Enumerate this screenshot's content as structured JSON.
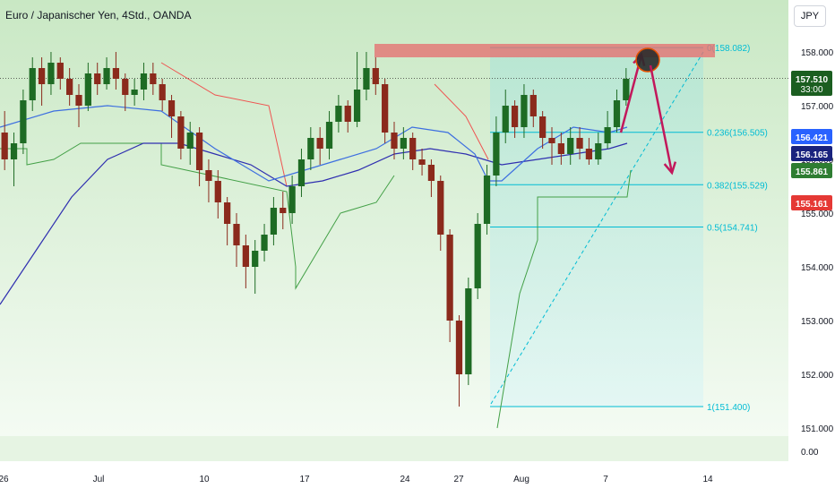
{
  "header": {
    "title": "Euro / Japanischer Yen, 4Std., OANDA",
    "currency_button": "JPY"
  },
  "colors": {
    "background_gradient_top": "#c9e8c4",
    "background_gradient_bottom": "#f4fbf3",
    "up_candle": "#1e6b24",
    "down_candle": "#8b2a1c",
    "ma_fast": "#3d6fe0",
    "ma_slow": "#2f2fb0",
    "supertrend_up": "#43a047",
    "supertrend_down": "#ef5350",
    "fib": "#00bcd4",
    "resistance_zone": "#e57373",
    "arrow": "#c2185b"
  },
  "chart_data": {
    "type": "candlestick",
    "title": "Euro / Japanischer Yen, 4Std., OANDA",
    "ylim": [
      151,
      158.6
    ],
    "grid": false,
    "y_ticks": [
      "158.000",
      "157.000",
      "156.000",
      "155.000",
      "154.000",
      "153.000",
      "152.000",
      "151.000"
    ],
    "y_bottom_tick": "0.00",
    "x_ticks": [
      "26",
      "Jul",
      "10",
      "17",
      "24",
      "27",
      "Aug",
      "7",
      "14"
    ],
    "price_labels": [
      {
        "value": "157.510",
        "sub": "33:00",
        "color": "#1b5e20"
      },
      {
        "value": "156.421",
        "color": "#2962ff"
      },
      {
        "value": "156.165",
        "color": "#1a237e"
      },
      {
        "value": "155.861",
        "color": "#2e7d32"
      },
      {
        "value": "155.161",
        "color": "#e53935"
      }
    ],
    "current_price": 157.51,
    "resistance_zone": [
      157.95,
      158.1
    ],
    "fib_levels": [
      {
        "label": "0(158.082)",
        "value": 158.082
      },
      {
        "label": "0.236(156.505)",
        "value": 156.505
      },
      {
        "label": "0.382(155.529)",
        "value": 155.529
      },
      {
        "label": "0.5(154.741)",
        "value": 154.741
      },
      {
        "label": "1(151.400)",
        "value": 151.4
      }
    ],
    "ma_fast": [
      [
        0,
        156.6
      ],
      [
        60,
        156.9
      ],
      [
        120,
        157.0
      ],
      [
        180,
        156.9
      ],
      [
        240,
        156.2
      ],
      [
        300,
        155.6
      ],
      [
        340,
        155.8
      ],
      [
        380,
        156.0
      ],
      [
        420,
        156.2
      ],
      [
        460,
        156.6
      ],
      [
        500,
        156.5
      ],
      [
        530,
        156.1
      ],
      [
        545,
        155.6
      ],
      [
        560,
        155.6
      ],
      [
        600,
        156.2
      ],
      [
        640,
        156.6
      ],
      [
        680,
        156.5
      ],
      [
        700,
        156.6
      ]
    ],
    "ma_slow": [
      [
        0,
        153.3
      ],
      [
        40,
        154.3
      ],
      [
        80,
        155.3
      ],
      [
        120,
        156.0
      ],
      [
        160,
        156.3
      ],
      [
        200,
        156.3
      ],
      [
        240,
        156.1
      ],
      [
        280,
        155.9
      ],
      [
        320,
        155.5
      ],
      [
        360,
        155.6
      ],
      [
        400,
        155.8
      ],
      [
        440,
        156.1
      ],
      [
        480,
        156.2
      ],
      [
        520,
        156.1
      ],
      [
        560,
        155.9
      ],
      [
        600,
        156.0
      ],
      [
        640,
        156.1
      ],
      [
        680,
        156.2
      ],
      [
        700,
        156.3
      ]
    ],
    "candles": [
      [
        156.5,
        156.0,
        156.9,
        155.8
      ],
      [
        156.0,
        156.3,
        156.5,
        155.5
      ],
      [
        156.3,
        157.1,
        157.3,
        156.1
      ],
      [
        157.1,
        157.7,
        157.9,
        156.9
      ],
      [
        157.7,
        157.4,
        157.9,
        157.0
      ],
      [
        157.4,
        157.8,
        158.0,
        157.2
      ],
      [
        157.8,
        157.5,
        157.9,
        157.3
      ],
      [
        157.5,
        157.2,
        157.7,
        157.0
      ],
      [
        157.2,
        157.0,
        157.4,
        156.6
      ],
      [
        157.0,
        157.6,
        157.8,
        156.9
      ],
      [
        157.6,
        157.4,
        157.8,
        157.2
      ],
      [
        157.4,
        157.7,
        157.9,
        157.3
      ],
      [
        157.7,
        157.5,
        158.0,
        157.3
      ],
      [
        157.5,
        157.2,
        157.6,
        156.9
      ],
      [
        157.2,
        157.3,
        157.5,
        157.0
      ],
      [
        157.3,
        157.6,
        157.8,
        157.1
      ],
      [
        157.6,
        157.4,
        157.8,
        157.2
      ],
      [
        157.4,
        157.1,
        157.5,
        156.9
      ],
      [
        157.1,
        156.8,
        157.2,
        156.4
      ],
      [
        156.8,
        156.2,
        156.9,
        156.0
      ],
      [
        156.2,
        156.5,
        156.7,
        155.9
      ],
      [
        156.5,
        155.8,
        156.6,
        155.5
      ],
      [
        155.8,
        155.6,
        156.0,
        155.2
      ],
      [
        155.6,
        155.2,
        155.8,
        154.9
      ],
      [
        155.2,
        154.8,
        155.3,
        154.4
      ],
      [
        154.8,
        154.4,
        155.0,
        154.0
      ],
      [
        154.4,
        154.0,
        154.6,
        153.6
      ],
      [
        154.0,
        154.3,
        154.5,
        153.5
      ],
      [
        154.3,
        154.6,
        154.8,
        154.1
      ],
      [
        154.6,
        155.1,
        155.3,
        154.4
      ],
      [
        155.1,
        155.0,
        155.4,
        154.7
      ],
      [
        155.0,
        155.5,
        155.7,
        154.8
      ],
      [
        155.5,
        156.0,
        156.2,
        155.3
      ],
      [
        156.0,
        156.4,
        156.6,
        155.8
      ],
      [
        156.4,
        156.2,
        156.6,
        155.9
      ],
      [
        156.2,
        156.7,
        156.9,
        156.0
      ],
      [
        156.7,
        157.0,
        157.2,
        156.5
      ],
      [
        157.0,
        156.7,
        157.1,
        156.5
      ],
      [
        156.7,
        157.3,
        158.0,
        156.6
      ],
      [
        157.3,
        157.7,
        158.0,
        157.1
      ],
      [
        157.7,
        157.4,
        157.9,
        157.2
      ],
      [
        157.4,
        156.5,
        157.5,
        156.3
      ],
      [
        156.5,
        156.2,
        156.7,
        156.0
      ],
      [
        156.2,
        156.4,
        156.6,
        156.0
      ],
      [
        156.4,
        156.0,
        156.5,
        155.8
      ],
      [
        156.0,
        155.9,
        156.2,
        155.7
      ],
      [
        155.9,
        155.6,
        156.0,
        155.3
      ],
      [
        155.6,
        154.6,
        155.7,
        154.3
      ],
      [
        154.6,
        153.0,
        154.7,
        152.6
      ],
      [
        153.0,
        152.0,
        153.1,
        151.4
      ],
      [
        152.0,
        153.6,
        153.8,
        151.8
      ],
      [
        153.6,
        154.8,
        155.0,
        153.4
      ],
      [
        154.8,
        155.7,
        155.9,
        154.6
      ],
      [
        155.7,
        156.5,
        156.8,
        155.5
      ],
      [
        156.5,
        157.0,
        157.3,
        156.3
      ],
      [
        157.0,
        156.6,
        157.1,
        156.4
      ],
      [
        156.6,
        157.2,
        157.4,
        156.4
      ],
      [
        157.2,
        156.8,
        157.3,
        156.6
      ],
      [
        156.8,
        156.4,
        156.9,
        156.2
      ],
      [
        156.4,
        156.3,
        156.6,
        155.9
      ],
      [
        156.3,
        156.1,
        156.5,
        155.9
      ],
      [
        156.1,
        156.4,
        156.6,
        155.9
      ],
      [
        156.4,
        156.2,
        156.6,
        156.0
      ],
      [
        156.2,
        156.0,
        156.4,
        155.9
      ],
      [
        156.0,
        156.3,
        156.5,
        155.9
      ],
      [
        156.3,
        156.6,
        156.9,
        156.2
      ],
      [
        156.6,
        157.1,
        157.3,
        156.5
      ],
      [
        157.1,
        157.5,
        157.7,
        157.0
      ]
    ],
    "candle_x_range": [
      0,
      704
    ],
    "annotations": [
      {
        "type": "arrow_up",
        "from": [
          693,
          156.5
        ],
        "to": [
          716,
          157.95
        ]
      },
      {
        "type": "circle",
        "at": [
          723,
          157.85
        ]
      },
      {
        "type": "arrow_down",
        "from": [
          726,
          157.75
        ],
        "to": [
          750,
          155.75
        ]
      }
    ]
  }
}
